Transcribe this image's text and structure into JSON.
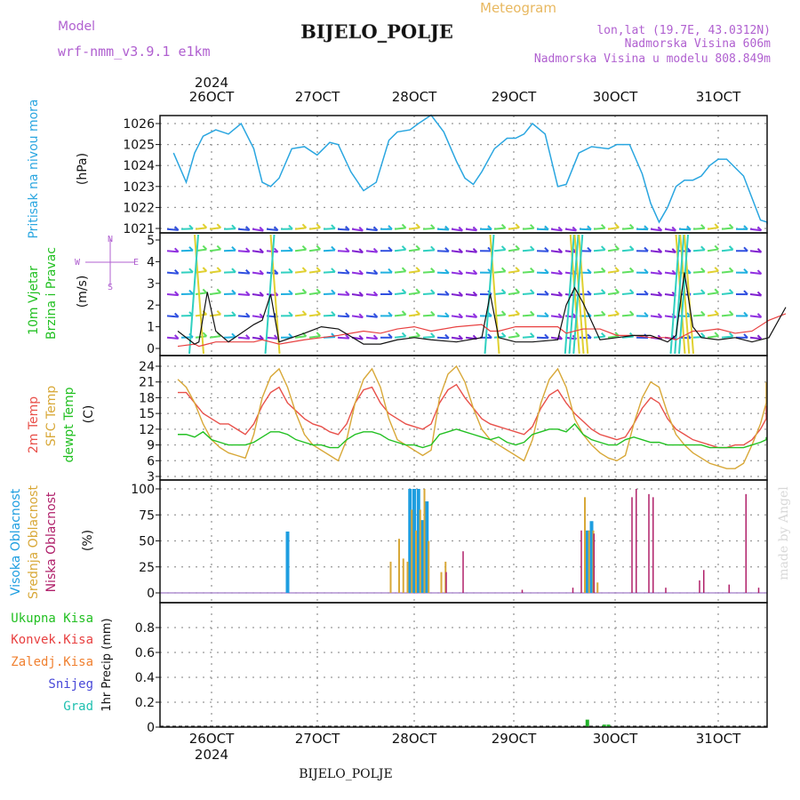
{
  "header": {
    "model_label": "Model",
    "model_name": "wrf-nmm_v3.9.1 e1km",
    "station": "BIJELO_POLJE",
    "meteogram": "Meteogram",
    "lonlat": "lon,lat (19.7E, 43.0312N)",
    "elevation": "Nadmorska Visina 606m",
    "model_elevation": "Nadmorska Visina u modelu 808.849m",
    "footer_station": "BIJELO_POLJE",
    "watermark": "made by Angel"
  },
  "colors": {
    "pressure": "#2aa6e0",
    "temp2m": "#e8504a",
    "sfc": "#d8a838",
    "dewpt": "#22c022",
    "high_cloud": "#1e9ee0",
    "mid_cloud": "#d8a838",
    "low_cloud": "#b0206a",
    "wind_speed": "#111111",
    "wind_dir": "#e84040",
    "precip_total": "#22b22a",
    "grid": "#999999"
  },
  "x_axis": {
    "year_top": "2024",
    "year_bottom": "2024",
    "days": [
      "26OCT",
      "27OCT",
      "28OCT",
      "29OCT",
      "30OCT",
      "31OCT"
    ],
    "range_hours": [
      0,
      144
    ]
  },
  "panels": {
    "pressure": {
      "label_main": "Pritisak na nivou mora",
      "label_unit": "(hPa)"
    },
    "wind": {
      "label_main": "10m Vjetar",
      "label_sub": "Brzina i Pravac",
      "label_unit": "(m/s)",
      "rose_n": "N",
      "rose_w": "W",
      "rose_e": "E",
      "rose_s": "S"
    },
    "temp": {
      "label_2m": "2m Temp",
      "label_sfc": "SFC Temp",
      "label_dew": "dewpt Temp",
      "label_unit": "(C)"
    },
    "cloud": {
      "label_high": "Visoka Oblacnost",
      "label_mid": "Srednja Oblacnost",
      "label_low": "Niska Oblacnost",
      "label_unit": "(%)"
    },
    "precip": {
      "label_total": "Ukupna Kisa",
      "label_conv": "Konvek.Kisa",
      "label_snowmelt": "Zaledj.Kisa",
      "label_snow": "Snijeg",
      "label_hail": "Grad",
      "label_unit": "1hr Precip (mm)"
    }
  },
  "chart_data": [
    {
      "type": "line",
      "panel": "pressure",
      "ylim": [
        1021,
        1026.5
      ],
      "yticks": [
        "1021",
        "1022",
        "1023",
        "1024",
        "1025",
        "1026"
      ],
      "x_hours": [
        -1,
        2,
        4,
        6,
        9,
        12,
        15,
        18,
        20,
        22,
        24,
        27,
        30,
        33,
        34,
        36,
        38,
        41,
        44,
        47,
        50,
        52,
        55,
        57,
        60,
        63,
        66,
        68,
        70,
        72,
        75,
        78,
        80,
        82,
        84,
        87,
        90,
        92,
        95,
        98,
        102,
        104,
        107,
        110,
        112,
        114,
        116,
        118,
        120,
        122,
        124,
        126,
        128,
        130,
        134,
        138,
        140,
        142,
        144
      ],
      "series": [
        {
          "values": [
            1024.6,
            1023.2,
            1024.6,
            1025.4,
            1025.7,
            1025.5,
            1026.0,
            1024.8,
            1023.2,
            1023.0,
            1023.4,
            1024.8,
            1024.9,
            1024.5,
            1024.7,
            1025.1,
            1025.0,
            1023.7,
            1022.8,
            1023.2,
            1025.2,
            1025.6,
            1025.7,
            1026.0,
            1026.4,
            1025.6,
            1024.2,
            1023.4,
            1023.1,
            1023.7,
            1024.8,
            1025.3,
            1025.3,
            1025.5,
            1026.0,
            1025.5,
            1023.0,
            1023.1,
            1024.6,
            1024.9,
            1024.8,
            1025.0,
            1025.0,
            1023.6,
            1022.2,
            1021.3,
            1022.0,
            1023.0,
            1023.3,
            1023.3,
            1023.5,
            1024.0,
            1024.3,
            1024.3,
            1023.5,
            1021.4,
            1021.3,
            1021.2,
            1021.2
          ]
        }
      ]
    },
    {
      "type": "line",
      "panel": "wind",
      "ylim": [
        0,
        5
      ],
      "yticks": [
        "0",
        "1",
        "2",
        "3",
        "4",
        "5"
      ],
      "x_hours": [
        0,
        4,
        5,
        7,
        9,
        12,
        18,
        20,
        22,
        24,
        30,
        34,
        38,
        44,
        48,
        52,
        56,
        60,
        66,
        72,
        74,
        76,
        80,
        84,
        90,
        92,
        94,
        96,
        100,
        104,
        108,
        112,
        116,
        118,
        120,
        122,
        124,
        128,
        132,
        136,
        140,
        144
      ],
      "series": [
        {
          "name": "speed",
          "values": [
            0.8,
            0.2,
            0.3,
            2.6,
            0.8,
            0.3,
            1.1,
            1.3,
            2.5,
            0.3,
            0.7,
            1.0,
            0.9,
            0.2,
            0.2,
            0.4,
            0.5,
            0.4,
            0.3,
            0.5,
            2.5,
            0.5,
            0.3,
            0.3,
            0.4,
            2.0,
            2.8,
            2.1,
            0.4,
            0.5,
            0.6,
            0.6,
            0.3,
            0.6,
            3.5,
            1.0,
            0.5,
            0.4,
            0.5,
            0.3,
            0.5,
            1.9
          ]
        },
        {
          "name": "direction",
          "values": [
            0.1,
            0.2,
            0.1,
            0.2,
            0.3,
            0.3,
            0.3,
            0.4,
            0.3,
            0.2,
            0.4,
            0.5,
            0.6,
            0.8,
            0.7,
            0.9,
            1.0,
            0.8,
            1.0,
            1.1,
            0.8,
            0.8,
            1.0,
            1.0,
            1.0,
            0.7,
            0.8,
            0.9,
            0.9,
            0.6,
            0.6,
            0.5,
            0.5,
            0.4,
            0.6,
            0.8,
            0.8,
            0.9,
            0.7,
            0.8,
            1.3,
            1.6
          ]
        }
      ]
    },
    {
      "type": "line",
      "panel": "temp",
      "ylim": [
        3,
        25
      ],
      "yticks": [
        "3",
        "6",
        "9",
        "12",
        "15",
        "18",
        "21",
        "24"
      ],
      "x_hours": [
        0,
        2,
        4,
        6,
        8,
        10,
        12,
        14,
        16,
        18,
        20,
        22,
        24,
        26,
        28,
        30,
        32,
        34,
        36,
        38,
        40,
        42,
        44,
        46,
        48,
        50,
        52,
        54,
        56,
        58,
        60,
        62,
        64,
        66,
        68,
        70,
        72,
        74,
        76,
        78,
        80,
        82,
        84,
        86,
        88,
        90,
        92,
        94,
        96,
        98,
        100,
        102,
        104,
        106,
        108,
        110,
        112,
        114,
        116,
        118,
        120,
        122,
        124,
        126,
        128,
        130,
        132,
        134,
        136,
        138,
        140,
        142,
        144
      ],
      "series": [
        {
          "name": "2m",
          "values": [
            19,
            19,
            17,
            15,
            14,
            13,
            13,
            12,
            11,
            13,
            16.5,
            19,
            20,
            17,
            15.5,
            14,
            13,
            12.5,
            11.5,
            11,
            13,
            17,
            19.5,
            20,
            17,
            15,
            14,
            13,
            12.5,
            12,
            13,
            17,
            19.5,
            20.5,
            18,
            16,
            14,
            13,
            12.5,
            12,
            11.5,
            11,
            12.5,
            16,
            18.5,
            19.5,
            17,
            15,
            13.5,
            12,
            11,
            10.5,
            10,
            10.5,
            13,
            16,
            18,
            17,
            14,
            12,
            11,
            10,
            9.5,
            9,
            8.5,
            8.5,
            9,
            9,
            10,
            12,
            14,
            16,
            16.5
          ]
        },
        {
          "name": "SFC",
          "values": [
            21.5,
            20,
            17,
            13,
            10,
            8.5,
            7.5,
            7,
            6.5,
            11,
            18,
            22,
            23.5,
            20,
            15,
            11,
            9,
            8,
            7,
            6,
            10,
            17,
            21.5,
            23.5,
            20,
            14,
            10,
            9,
            8,
            7,
            8,
            18,
            22.5,
            24,
            21,
            16,
            12,
            10,
            9,
            8,
            7,
            6,
            10,
            17,
            21.5,
            23.5,
            20,
            14,
            11,
            9,
            7.5,
            6.5,
            6,
            7,
            13,
            18,
            21,
            20,
            15,
            11,
            9,
            7.5,
            6.5,
            5.5,
            5,
            4.5,
            4.5,
            5.5,
            9,
            13,
            17,
            20,
            21
          ]
        },
        {
          "name": "dewpt",
          "values": [
            11,
            11,
            10.5,
            11.5,
            10,
            9.5,
            9,
            9,
            9,
            9.5,
            10.5,
            11.5,
            11.5,
            11,
            10,
            9.5,
            9,
            9,
            8.5,
            8.5,
            10,
            11,
            11.5,
            11.5,
            11,
            10,
            9.5,
            9,
            9,
            8.5,
            9,
            11,
            11.5,
            12,
            11.5,
            11,
            10.5,
            10,
            10.5,
            9.5,
            9,
            9.5,
            11,
            11.5,
            12,
            12,
            11.5,
            13,
            11,
            10,
            9.5,
            9,
            9,
            10,
            10.5,
            10,
            9.5,
            9.5,
            9,
            9,
            9,
            9,
            9,
            8.5,
            8.5,
            8.5,
            8.5,
            8.5,
            9,
            9.5,
            10,
            10,
            10.5
          ]
        }
      ]
    },
    {
      "type": "bar",
      "panel": "cloud",
      "ylim": [
        0,
        100
      ],
      "yticks": [
        "0",
        "25",
        "50",
        "75",
        "100"
      ],
      "series": [
        {
          "name": "high",
          "points": [
            [
              26,
              59
            ],
            [
              55,
              100
            ],
            [
              56,
              100
            ],
            [
              57,
              100
            ],
            [
              58,
              70
            ],
            [
              59,
              88
            ],
            [
              97,
              60
            ],
            [
              98,
              69
            ]
          ]
        },
        {
          "name": "mid",
          "points": [
            [
              50,
              30
            ],
            [
              52,
              52
            ],
            [
              53,
              33
            ],
            [
              54,
              30
            ],
            [
              55,
              80
            ],
            [
              56,
              60
            ],
            [
              57,
              80
            ],
            [
              58,
              100
            ],
            [
              59,
              50
            ],
            [
              62,
              20
            ],
            [
              63,
              30
            ],
            [
              96,
              92
            ],
            [
              97,
              60
            ],
            [
              98,
              60
            ],
            [
              99,
              10
            ]
          ]
        },
        {
          "name": "low",
          "points": [
            [
              64,
              20
            ],
            [
              68,
              40
            ],
            [
              82,
              3
            ],
            [
              94,
              5
            ],
            [
              96,
              60
            ],
            [
              99,
              57
            ],
            [
              108,
              92
            ],
            [
              109,
              100
            ],
            [
              112,
              95
            ],
            [
              113,
              92
            ],
            [
              116,
              5
            ],
            [
              124,
              12
            ],
            [
              125,
              22
            ],
            [
              131,
              8
            ],
            [
              135,
              95
            ],
            [
              138,
              5
            ]
          ]
        }
      ]
    },
    {
      "type": "bar",
      "panel": "precip",
      "ylim": [
        0,
        1
      ],
      "yticks": [
        "0",
        "0.2",
        "0.4",
        "0.6",
        "0.8"
      ],
      "series": [
        {
          "name": "total",
          "points": [
            [
              97,
              0.06
            ],
            [
              101,
              0.02
            ],
            [
              102,
              0.02
            ]
          ]
        }
      ]
    }
  ]
}
